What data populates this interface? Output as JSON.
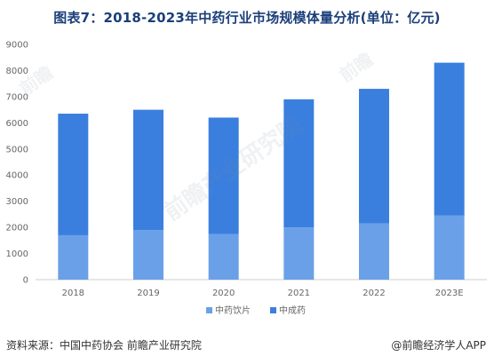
{
  "title": "图表7：2018-2023年中药行业市场规模体量分析(单位：亿元)",
  "footer": {
    "source": "资料来源：中国中药协会 前瞻产业研究院",
    "brand": "@前瞻经济学人APP"
  },
  "watermark": {
    "main": "前瞻产业研究院",
    "corner_left": "前瞻",
    "corner_right": "前瞻"
  },
  "colors": {
    "bottom_series": "#6aa0e8",
    "top_series": "#3b7fde",
    "title": "#1b3f7a",
    "grid": "#e6e6e6"
  },
  "chart_data": {
    "type": "bar",
    "stacked": true,
    "categories": [
      "2018",
      "2019",
      "2020",
      "2021",
      "2022",
      "2023E"
    ],
    "series": [
      {
        "name": "中药饮片",
        "values": [
          1700,
          1900,
          1750,
          2000,
          2150,
          2450
        ]
      },
      {
        "name": "中成药",
        "values": [
          4650,
          4600,
          4450,
          4900,
          5150,
          5850
        ]
      }
    ],
    "totals": [
      6350,
      6500,
      6200,
      6900,
      7300,
      8300
    ],
    "ylim": [
      0,
      9000
    ],
    "yticks": [
      0,
      1000,
      2000,
      3000,
      4000,
      5000,
      6000,
      7000,
      8000,
      9000
    ],
    "grid": false,
    "legend": "bottom"
  }
}
